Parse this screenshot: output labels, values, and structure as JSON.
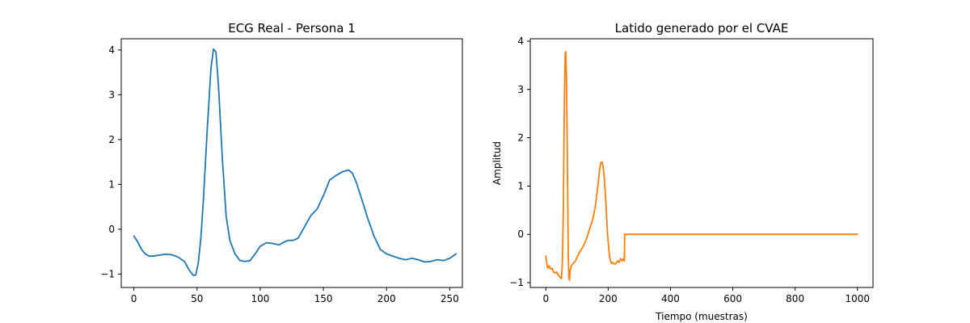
{
  "chart_data": [
    {
      "type": "line",
      "title": "ECG Real - Persona 1",
      "xlabel": "",
      "ylabel": "",
      "xlim": [
        -10,
        260
      ],
      "ylim": [
        -1.3,
        4.25
      ],
      "xticks": [
        0,
        50,
        100,
        150,
        200,
        250
      ],
      "yticks": [
        -1,
        0,
        1,
        2,
        3,
        4
      ],
      "grid": false,
      "series": [
        {
          "color": "#1f77b4",
          "x": [
            0,
            3,
            6,
            9,
            12,
            15,
            20,
            25,
            30,
            35,
            40,
            44,
            47,
            49,
            51,
            53,
            55,
            58,
            61,
            63,
            65,
            67,
            70,
            73,
            76,
            80,
            84,
            88,
            92,
            96,
            100,
            105,
            110,
            115,
            118,
            122,
            126,
            130,
            135,
            140,
            145,
            150,
            155,
            160,
            165,
            170,
            173,
            176,
            180,
            185,
            190,
            195,
            200,
            205,
            210,
            215,
            220,
            225,
            230,
            235,
            240,
            245,
            250,
            255
          ],
          "y": [
            -0.15,
            -0.28,
            -0.45,
            -0.55,
            -0.6,
            -0.6,
            -0.58,
            -0.56,
            -0.57,
            -0.62,
            -0.72,
            -0.92,
            -1.03,
            -1.02,
            -0.75,
            -0.2,
            0.65,
            2.2,
            3.6,
            4.02,
            3.95,
            3.2,
            1.6,
            0.3,
            -0.25,
            -0.55,
            -0.7,
            -0.72,
            -0.7,
            -0.55,
            -0.38,
            -0.3,
            -0.32,
            -0.35,
            -0.3,
            -0.25,
            -0.25,
            -0.2,
            0.05,
            0.3,
            0.45,
            0.75,
            1.1,
            1.2,
            1.28,
            1.32,
            1.25,
            1.05,
            0.7,
            0.25,
            -0.15,
            -0.45,
            -0.55,
            -0.6,
            -0.65,
            -0.68,
            -0.65,
            -0.68,
            -0.73,
            -0.72,
            -0.68,
            -0.7,
            -0.65,
            -0.55
          ]
        }
      ]
    },
    {
      "type": "line",
      "title": "Latido generado por el CVAE",
      "xlabel": "Tiempo (muestras)",
      "ylabel": "Amplitud",
      "xlim": [
        -50,
        1050
      ],
      "ylim": [
        -1.1,
        4.05
      ],
      "xticks": [
        0,
        200,
        400,
        600,
        800,
        1000
      ],
      "yticks": [
        -1,
        0,
        1,
        2,
        3,
        4
      ],
      "grid": false,
      "series": [
        {
          "color": "#ff7f0e",
          "x": [
            0,
            3,
            6,
            10,
            15,
            20,
            25,
            30,
            35,
            40,
            45,
            50,
            53,
            56,
            58,
            60,
            62,
            64,
            66,
            68,
            70,
            72,
            74,
            76,
            78,
            82,
            88,
            95,
            102,
            110,
            120,
            130,
            140,
            150,
            158,
            165,
            172,
            176,
            180,
            184,
            188,
            193,
            198,
            204,
            210,
            215,
            220,
            225,
            230,
            235,
            240,
            245,
            250,
            252,
            253,
            256,
            300,
            400,
            500,
            600,
            700,
            800,
            900,
            1000
          ],
          "y": [
            -0.45,
            -0.6,
            -0.7,
            -0.65,
            -0.72,
            -0.7,
            -0.78,
            -0.8,
            -0.78,
            -0.85,
            -0.88,
            -0.92,
            -0.6,
            0.5,
            1.8,
            3.0,
            3.75,
            3.78,
            3.3,
            2.2,
            0.8,
            -0.4,
            -0.9,
            -0.95,
            -0.75,
            -0.65,
            -0.6,
            -0.55,
            -0.45,
            -0.35,
            -0.25,
            -0.1,
            0.1,
            0.3,
            0.55,
            0.9,
            1.3,
            1.48,
            1.5,
            1.4,
            1.15,
            0.6,
            0.0,
            -0.45,
            -0.6,
            -0.58,
            -0.62,
            -0.6,
            -0.55,
            -0.58,
            -0.5,
            -0.55,
            -0.5,
            -0.55,
            0.0,
            0.0,
            0.0,
            0.0,
            0.0,
            0.0,
            0.0,
            0.0,
            0.0,
            0.0
          ]
        }
      ]
    }
  ]
}
